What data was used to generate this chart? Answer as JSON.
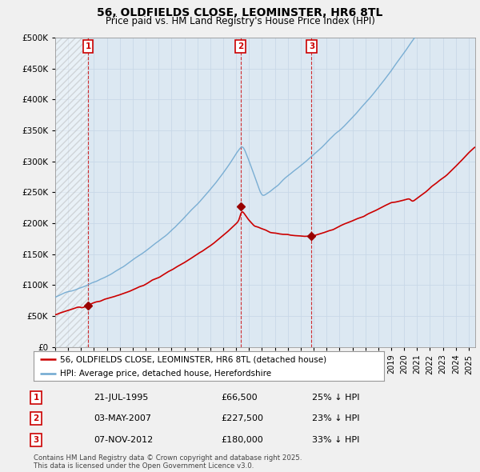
{
  "title": "56, OLDFIELDS CLOSE, LEOMINSTER, HR6 8TL",
  "subtitle": "Price paid vs. HM Land Registry's House Price Index (HPI)",
  "hpi_label": "HPI: Average price, detached house, Herefordshire",
  "property_label": "56, OLDFIELDS CLOSE, LEOMINSTER, HR6 8TL (detached house)",
  "sales": [
    {
      "num": 1,
      "date_x": 1995.55,
      "price": 66500,
      "label": "21-JUL-1995",
      "pct": "25% ↓ HPI"
    },
    {
      "num": 2,
      "date_x": 2007.34,
      "price": 227500,
      "label": "03-MAY-2007",
      "pct": "23% ↓ HPI"
    },
    {
      "num": 3,
      "date_x": 2012.84,
      "price": 180000,
      "label": "07-NOV-2012",
      "pct": "33% ↓ HPI"
    }
  ],
  "hpi_color": "#6fa8d0",
  "price_color": "#cc0000",
  "marker_color": "#990000",
  "vline_color": "#cc0000",
  "grid_color": "#c8d8e8",
  "plot_bg": "#dce8f2",
  "bg_color": "#f0f0f0",
  "ylim": [
    0,
    500000
  ],
  "xlim_start": 1993.0,
  "xlim_end": 2025.5,
  "ylabel_ticks": [
    0,
    50000,
    100000,
    150000,
    200000,
    250000,
    300000,
    350000,
    400000,
    450000,
    500000
  ],
  "xticks": [
    1993,
    1994,
    1995,
    1996,
    1997,
    1998,
    1999,
    2000,
    2001,
    2002,
    2003,
    2004,
    2005,
    2006,
    2007,
    2008,
    2009,
    2010,
    2011,
    2012,
    2013,
    2014,
    2015,
    2016,
    2017,
    2018,
    2019,
    2020,
    2021,
    2022,
    2023,
    2024,
    2025
  ],
  "footnote": "Contains HM Land Registry data © Crown copyright and database right 2025.\nThis data is licensed under the Open Government Licence v3.0.",
  "hatch_end_year": 1995.55
}
